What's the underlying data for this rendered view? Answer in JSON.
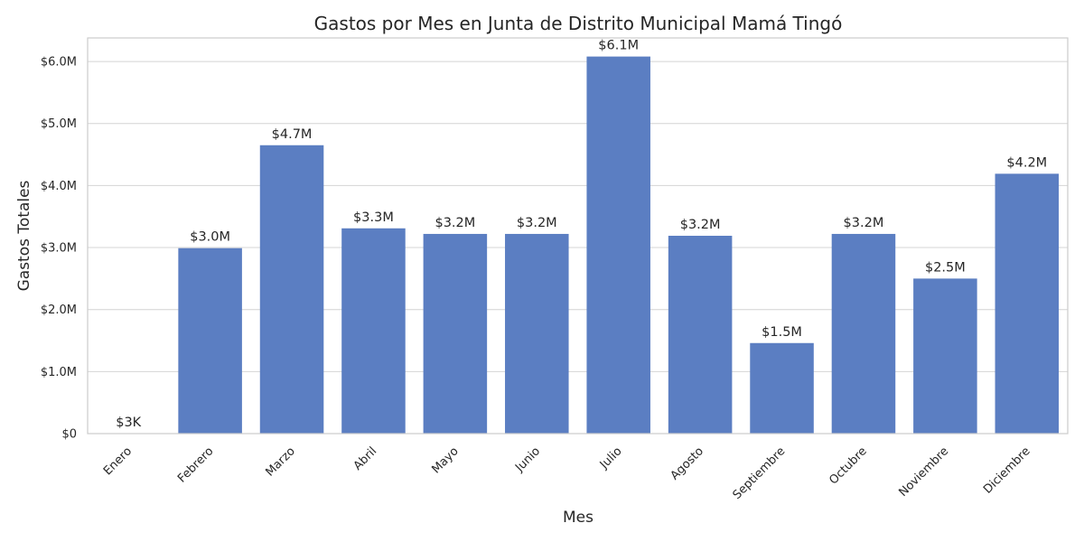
{
  "chart_data": {
    "type": "bar",
    "title": "Gastos por Mes en Junta de Distrito Municipal Mamá Tingó",
    "xlabel": "Mes",
    "ylabel": "Gastos Totales",
    "categories": [
      "Enero",
      "Febrero",
      "Marzo",
      "Abril",
      "Mayo",
      "Junio",
      "Julio",
      "Agosto",
      "Septiembre",
      "Octubre",
      "Noviembre",
      "Diciembre"
    ],
    "values": [
      3000,
      2990000,
      4650000,
      3310000,
      3220000,
      3220000,
      6080000,
      3190000,
      1460000,
      3220000,
      2500000,
      4190000
    ],
    "data_labels": [
      "$3K",
      "$3.0M",
      "$4.7M",
      "$3.3M",
      "$3.2M",
      "$3.2M",
      "$6.1M",
      "$3.2M",
      "$1.5M",
      "$3.2M",
      "$2.5M",
      "$4.2M"
    ],
    "y_ticks": [
      0,
      1000000,
      2000000,
      3000000,
      4000000,
      5000000,
      6000000
    ],
    "y_tick_labels": [
      "$0",
      "$1.0M",
      "$2.0M",
      "$3.0M",
      "$4.0M",
      "$5.0M",
      "$6.0M"
    ],
    "ylim": [
      0,
      6380000
    ],
    "grid": "horizontal",
    "bar_color": "#5b7ec2"
  }
}
